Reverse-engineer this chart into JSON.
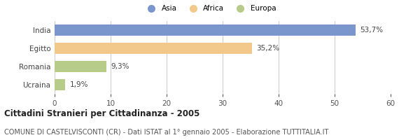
{
  "categories": [
    "India",
    "Egitto",
    "Romania",
    "Ucraina"
  ],
  "values": [
    53.7,
    35.2,
    9.3,
    1.9
  ],
  "labels": [
    "53,7%",
    "35,2%",
    "9,3%",
    "1,9%"
  ],
  "colors": [
    "#7b96cc",
    "#f2c98a",
    "#b8cc8a",
    "#b8cc8a"
  ],
  "xlim": [
    0,
    60
  ],
  "xticks": [
    0,
    10,
    20,
    30,
    40,
    50,
    60
  ],
  "legend_items": [
    {
      "label": "Asia",
      "color": "#7b96cc"
    },
    {
      "label": "Africa",
      "color": "#f2c98a"
    },
    {
      "label": "Europa",
      "color": "#b8cc8a"
    }
  ],
  "title": "Cittadini Stranieri per Cittadinanza - 2005",
  "subtitle": "COMUNE DI CASTELVISCONTI (CR) - Dati ISTAT al 1° gennaio 2005 - Elaborazione TUTTITALIA.IT",
  "title_fontsize": 8.5,
  "subtitle_fontsize": 7.0,
  "bar_height": 0.6,
  "background_color": "#ffffff",
  "grid_color": "#cccccc",
  "label_fontsize": 7.5,
  "tick_fontsize": 7.5,
  "ytick_fontsize": 7.5
}
